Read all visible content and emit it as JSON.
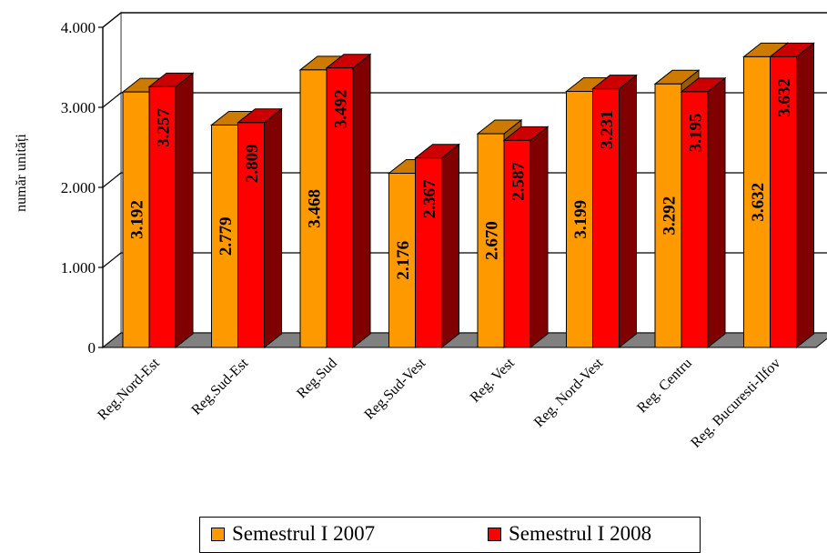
{
  "chart_data": {
    "type": "bar",
    "ylabel": "număr unități",
    "ylim": [
      0,
      4000
    ],
    "yticks": [
      "0",
      "1.000",
      "2.000",
      "3.000",
      "4.000"
    ],
    "grid": true,
    "legend_position": "bottom",
    "categories": [
      "Reg.Nord-Est",
      "Reg.Sud-Est",
      "Reg.Sud",
      "Reg.Sud-Vest",
      "Reg. Vest",
      "Reg. Nord-Vest",
      "Reg. Centru",
      "Reg. Bucuresti-Ilfov"
    ],
    "series": [
      {
        "name": "Semestrul I 2007",
        "values": [
          3192,
          2779,
          3468,
          2176,
          2670,
          3199,
          3292,
          3632
        ],
        "labels": [
          "3.192",
          "2.779",
          "3.468",
          "2.176",
          "2.670",
          "3.199",
          "3.292",
          "3.632"
        ],
        "color": "#FF9900",
        "top_color": "#CC7A00",
        "side_color": "#995C00"
      },
      {
        "name": "Semestrul I 2008",
        "values": [
          3257,
          2809,
          3492,
          2367,
          2587,
          3231,
          3195,
          3632
        ],
        "labels": [
          "3.257",
          "2.809",
          "3.492",
          "2.367",
          "2.587",
          "3.231",
          "3.195",
          "3.632"
        ],
        "color": "#FF0000",
        "top_color": "#CC0000",
        "side_color": "#800000"
      }
    ]
  }
}
